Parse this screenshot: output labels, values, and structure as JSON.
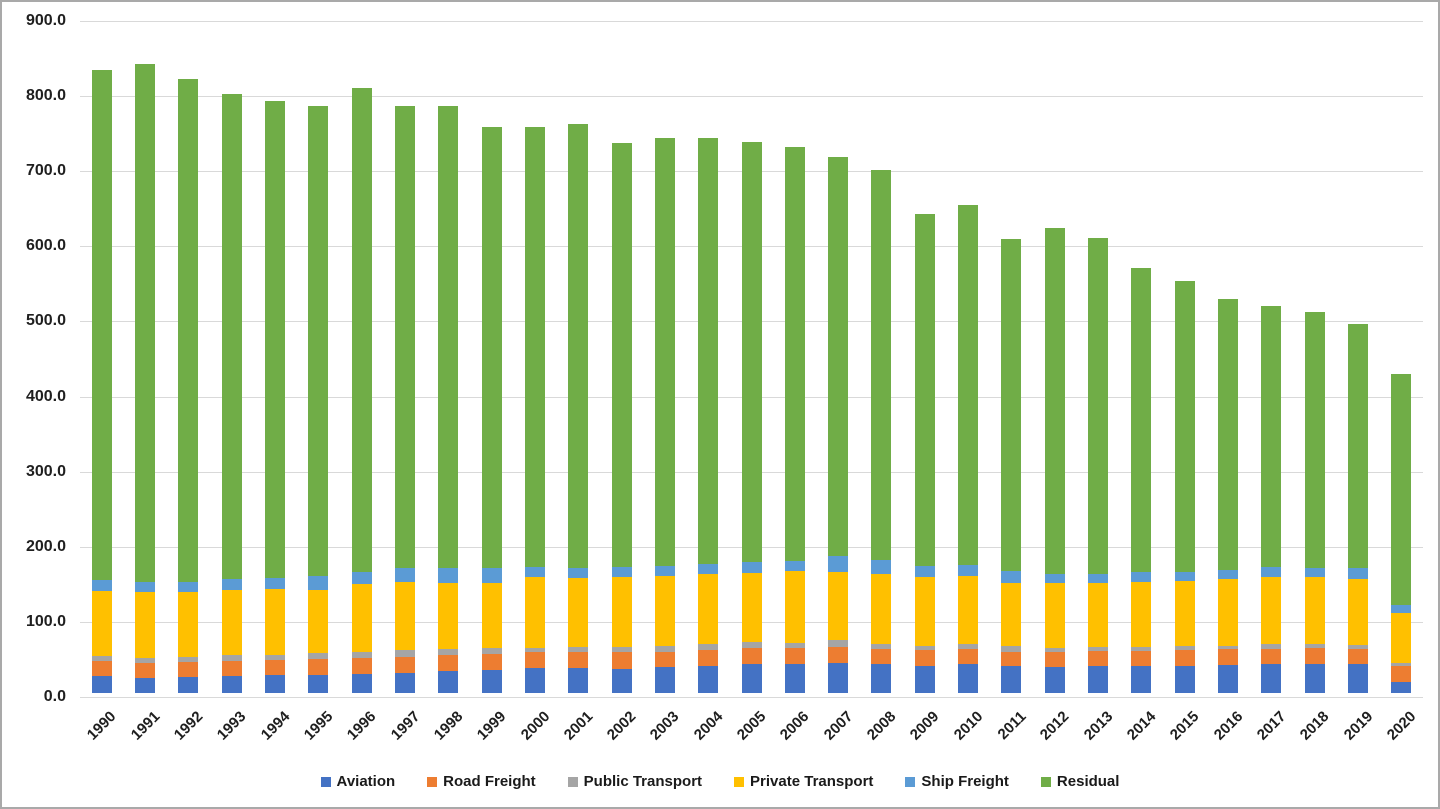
{
  "chart_data": {
    "type": "bar",
    "subtype": "stacked",
    "title": "",
    "xlabel": "",
    "ylabel": "",
    "grid": true,
    "categories": [
      "1990",
      "1991",
      "1992",
      "1993",
      "1994",
      "1995",
      "1996",
      "1997",
      "1998",
      "1999",
      "2000",
      "2001",
      "2002",
      "2003",
      "2004",
      "2005",
      "2006",
      "2007",
      "2008",
      "2009",
      "2010",
      "2011",
      "2012",
      "2013",
      "2014",
      "2015",
      "2016",
      "2017",
      "2018",
      "2019",
      "2020"
    ],
    "series": [
      {
        "name": "Aviation",
        "color": "#4472C4",
        "values": [
          22,
          20,
          21,
          23,
          24,
          24,
          25,
          27,
          29,
          31,
          33,
          33,
          32,
          34,
          36,
          39,
          39,
          40,
          38,
          36,
          38,
          36,
          35,
          36,
          36,
          36,
          37,
          38,
          39,
          38,
          15
        ]
      },
      {
        "name": "Road Freight",
        "color": "#ED7D31",
        "values": [
          20,
          20,
          20,
          20,
          20,
          21,
          22,
          21,
          21,
          21,
          21,
          21,
          22,
          21,
          21,
          21,
          21,
          21,
          21,
          21,
          21,
          19,
          20,
          20,
          20,
          21,
          21,
          21,
          21,
          21,
          21
        ]
      },
      {
        "name": "Public Transport",
        "color": "#A5A5A5",
        "values": [
          7,
          7,
          7,
          7,
          7,
          8,
          8,
          9,
          8,
          8,
          6,
          7,
          7,
          7,
          8,
          8,
          7,
          10,
          6,
          6,
          6,
          7,
          5,
          5,
          5,
          5,
          5,
          6,
          5,
          5,
          4
        ]
      },
      {
        "name": "Private Transport",
        "color": "#FFC000",
        "values": [
          87,
          88,
          87,
          87,
          87,
          84,
          90,
          91,
          89,
          87,
          94,
          92,
          94,
          94,
          93,
          92,
          95,
          90,
          93,
          91,
          91,
          85,
          86,
          86,
          87,
          87,
          89,
          90,
          90,
          88,
          67
        ]
      },
      {
        "name": "Ship Freight",
        "color": "#5B9BD5",
        "values": [
          14,
          13,
          13,
          15,
          15,
          19,
          16,
          18,
          20,
          20,
          14,
          14,
          13,
          13,
          14,
          15,
          14,
          21,
          19,
          15,
          15,
          16,
          12,
          12,
          13,
          12,
          12,
          13,
          12,
          15,
          10
        ]
      },
      {
        "name": "Residual",
        "color": "#70AD47",
        "values": [
          680,
          689,
          670,
          646,
          635,
          626,
          644,
          615,
          614,
          586,
          586,
          590,
          564,
          570,
          567,
          558,
          551,
          532,
          519,
          469,
          479,
          442,
          461,
          447,
          405,
          387,
          360,
          347,
          340,
          324,
          308
        ]
      }
    ],
    "totals": [
      830,
      837,
      818,
      798,
      788,
      782,
      805,
      781,
      781,
      753,
      754,
      757,
      732,
      739,
      739,
      733,
      727,
      714,
      696,
      638,
      650,
      605,
      619,
      606,
      566,
      548,
      524,
      515,
      507,
      491,
      425
    ],
    "y_axis": {
      "min": 0,
      "max": 900,
      "step": 100,
      "tick_labels": [
        "0.0",
        "100.0",
        "200.0",
        "300.0",
        "400.0",
        "500.0",
        "600.0",
        "700.0",
        "800.0",
        "900.0"
      ]
    },
    "legend": {
      "position": "bottom",
      "entries": [
        "Aviation",
        "Road Freight",
        "Public Transport",
        "Private Transport",
        "Ship Freight",
        "Residual"
      ]
    },
    "colors": {
      "gridline": "#D9D9D9",
      "axis_text": "#1F1F1F",
      "background": "#FFFFFF",
      "border": "#A9A9A9"
    }
  }
}
